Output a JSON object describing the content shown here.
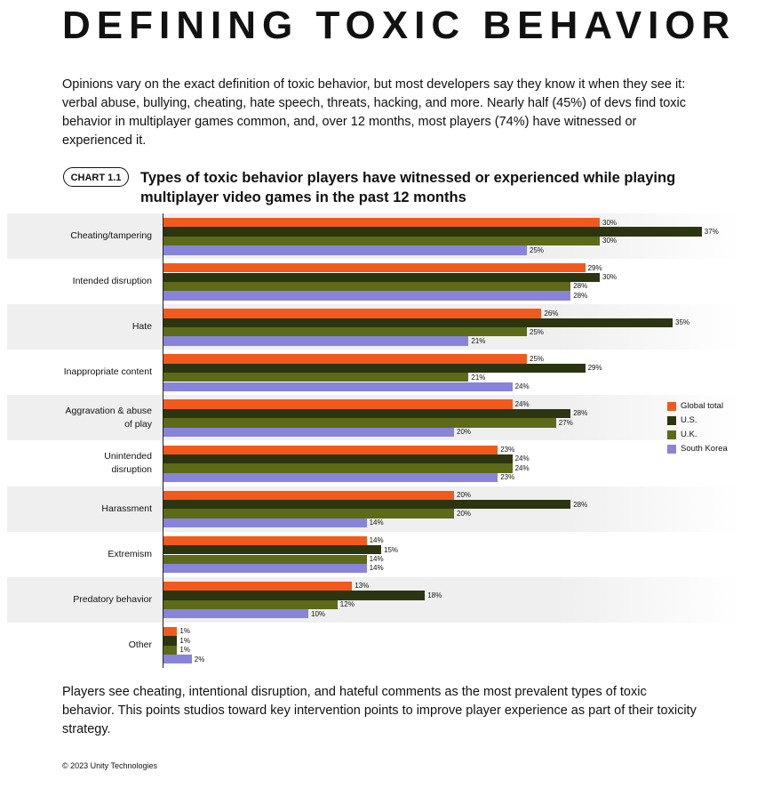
{
  "title": "DEFINING TOXIC BEHAVIOR",
  "intro": "Opinions vary on the exact definition of toxic behavior, but most developers say they know it when they see it: verbal abuse, bullying, cheating, hate speech, threats, hacking, and more. Nearly half (45%) of devs find toxic behavior in multiplayer games common, and, over 12 months, most players (74%) have witnessed or experienced it.",
  "chart_label": "CHART 1.1",
  "chart_data": {
    "type": "bar",
    "orientation": "horizontal",
    "title": "Types of toxic behavior players have witnessed or experienced while playing multiplayer video games in the past 12 months",
    "categories": [
      "Cheating/tampering",
      "Intended disruption",
      "Hate",
      "Inappropriate content",
      "Aggravation & abuse of play",
      "Unintended disruption",
      "Harassment",
      "Extremism",
      "Predatory behavior",
      "Other"
    ],
    "series": [
      {
        "name": "Global total",
        "color": "#f25a1d",
        "values": [
          30,
          29,
          26,
          25,
          24,
          23,
          20,
          14,
          13,
          1
        ],
        "value_labels": [
          "30%",
          "29%",
          "26%",
          "25%",
          "24%",
          "23%",
          "20%",
          "14%",
          "13%",
          "1%"
        ]
      },
      {
        "name": "U.S.",
        "color": "#2b3510",
        "values": [
          37,
          30,
          35,
          29,
          28,
          24,
          28,
          15,
          18,
          1
        ],
        "value_labels": [
          "37%",
          "30%",
          "35%",
          "29%",
          "28%",
          "24%",
          "28%",
          "15%",
          "18%",
          "1%"
        ]
      },
      {
        "name": "U.K.",
        "color": "#5d6a18",
        "values": [
          30,
          28,
          25,
          21,
          27,
          24,
          20,
          14,
          12,
          1
        ],
        "value_labels": [
          "30%",
          "28%",
          "25%",
          "21%",
          "27%",
          "24%",
          "20%",
          "14%",
          "12%",
          "1%"
        ]
      },
      {
        "name": "South Korea",
        "color": "#8784da",
        "values": [
          25,
          28,
          21,
          24,
          20,
          23,
          14,
          14,
          10,
          2
        ],
        "value_labels": [
          "25%",
          "28%",
          "21%",
          "24%",
          "20%",
          "23%",
          "14%",
          "14%",
          "10%",
          "2%"
        ]
      }
    ],
    "legend": "right"
  },
  "outro": "Players see cheating, intentional disruption, and hateful comments as the most prevalent types of toxic behavior. This points studios toward key intervention points to improve player experience as part of their toxicity strategy.",
  "footer": "© 2023 Unity Technologies"
}
